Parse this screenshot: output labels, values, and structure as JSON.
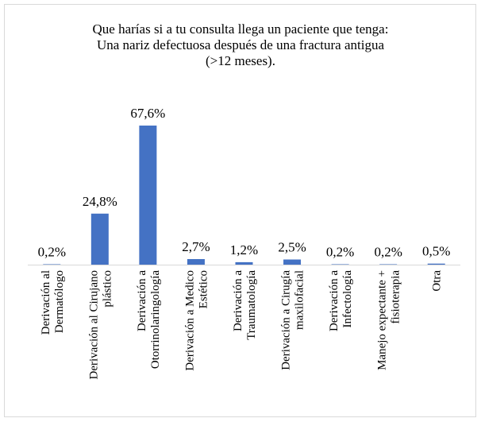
{
  "chart_data": {
    "type": "bar",
    "title": [
      "Que harías si a tu consulta llega un paciente que tenga:",
      "Una nariz defectuosa después de una fractura antigua",
      "(>12 meses)."
    ],
    "categories": [
      "Derivación al\nDermatólogo",
      "Derivación al Cirujano\nplástico",
      "Derivación a\nOtorrinolaringología",
      "Derivación a Medico\nEstético",
      "Derivación a\nTraumatología",
      "Derivación a Cirugía\nmaxilofacial",
      "Derivación a\nInfectología",
      "Manejo expectante +\nfisioterapia",
      "Otra"
    ],
    "values": [
      0.2,
      24.8,
      67.6,
      2.7,
      1.2,
      2.5,
      0.2,
      0.2,
      0.5
    ],
    "value_labels": [
      "0,2%",
      "24,8%",
      "67,6%",
      "2,7%",
      "1,2%",
      "2,5%",
      "0,2%",
      "0,2%",
      "0,5%"
    ],
    "color": "#4472c4"
  }
}
